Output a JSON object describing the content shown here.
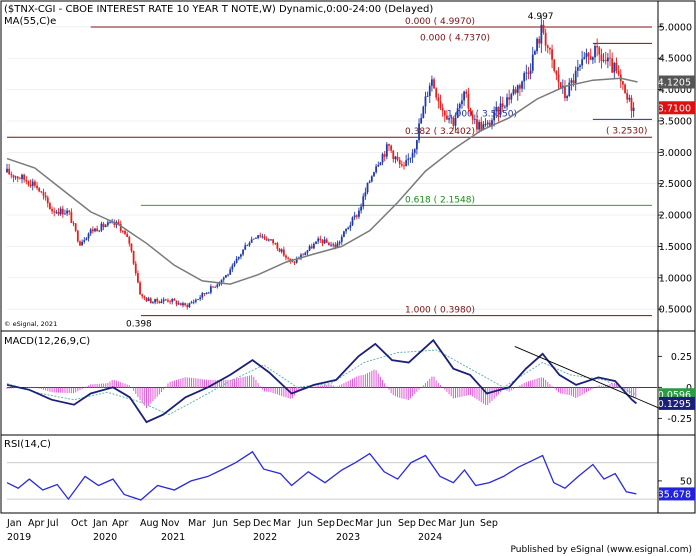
{
  "header": {
    "title": "($TNX-CGI - CBOE INTEREST RATE 10 YEAR T NOTE,W) Dynamic,0:00-24:00 (Delayed)",
    "ma_label": "MA(55,C)e",
    "copyright": "© eSignal, 2021",
    "footer": "Published by eSignal (www.esignal.com)"
  },
  "colors": {
    "up": "#1f3aa8",
    "down": "#e21f1f",
    "ma": "#7a7a7a",
    "macd": "#1a1f7a",
    "signal": "#6ab0b0",
    "hist": "#e05ad8",
    "rsi": "#2a2ad8",
    "fib_red": "#7a1010",
    "fib_green": "#1a8a1a",
    "fib_blue": "#2030a0"
  },
  "chart_data": [
    {
      "type": "candlestick",
      "panel": "price",
      "title": "($TNX-CGI - CBOE INTEREST RATE 10 YEAR T NOTE,W) Dynamic,0:00-24:00 (Delayed)",
      "ylim": [
        0.2,
        5.3
      ],
      "yticks": [
        "5.0000",
        "4.5000",
        "4.0000",
        "3.5000",
        "3.0000",
        "2.5000",
        "2.0000",
        "1.5000",
        "1.0000",
        "0.5000"
      ],
      "x_axis": {
        "months": [
          "Jan",
          "Apr",
          "Jul",
          "Oct",
          "Jan",
          "Apr",
          "Aug",
          "Nov",
          "Mar",
          "Jun",
          "Sep",
          "Dec",
          "Mar",
          "Jun",
          "Sep",
          "Dec",
          "Mar",
          "Jun",
          "Sep",
          "Dec",
          "Mar",
          "Jun",
          "Sep"
        ],
        "years": [
          "2019",
          "2020",
          "2021",
          "2022",
          "2023",
          "2024"
        ]
      },
      "series_points": [
        {
          "t": 2019.0,
          "v": 2.68
        },
        {
          "t": 2019.12,
          "v": 2.6
        },
        {
          "t": 2019.25,
          "v": 2.5
        },
        {
          "t": 2019.4,
          "v": 2.08
        },
        {
          "t": 2019.55,
          "v": 2.05
        },
        {
          "t": 2019.65,
          "v": 1.55
        },
        {
          "t": 2019.75,
          "v": 1.75
        },
        {
          "t": 2019.9,
          "v": 1.85
        },
        {
          "t": 2020.0,
          "v": 1.85
        },
        {
          "t": 2020.1,
          "v": 1.55
        },
        {
          "t": 2020.2,
          "v": 0.7
        },
        {
          "t": 2020.3,
          "v": 0.62
        },
        {
          "t": 2020.45,
          "v": 0.65
        },
        {
          "t": 2020.6,
          "v": 0.55
        },
        {
          "t": 2020.7,
          "v": 0.66
        },
        {
          "t": 2020.85,
          "v": 0.86
        },
        {
          "t": 2021.0,
          "v": 1.1
        },
        {
          "t": 2021.15,
          "v": 1.55
        },
        {
          "t": 2021.25,
          "v": 1.7
        },
        {
          "t": 2021.4,
          "v": 1.55
        },
        {
          "t": 2021.55,
          "v": 1.22
        },
        {
          "t": 2021.7,
          "v": 1.45
        },
        {
          "t": 2021.8,
          "v": 1.6
        },
        {
          "t": 2021.95,
          "v": 1.5
        },
        {
          "t": 2022.05,
          "v": 1.8
        },
        {
          "t": 2022.15,
          "v": 2.05
        },
        {
          "t": 2022.3,
          "v": 2.8
        },
        {
          "t": 2022.42,
          "v": 3.1
        },
        {
          "t": 2022.55,
          "v": 2.7
        },
        {
          "t": 2022.65,
          "v": 3.1
        },
        {
          "t": 2022.8,
          "v": 4.2
        },
        {
          "t": 2022.9,
          "v": 3.7
        },
        {
          "t": 2023.0,
          "v": 3.5
        },
        {
          "t": 2023.1,
          "v": 3.9
        },
        {
          "t": 2023.2,
          "v": 3.45
        },
        {
          "t": 2023.3,
          "v": 3.4
        },
        {
          "t": 2023.45,
          "v": 3.8
        },
        {
          "t": 2023.6,
          "v": 4.1
        },
        {
          "t": 2023.7,
          "v": 4.45
        },
        {
          "t": 2023.8,
          "v": 4.997
        },
        {
          "t": 2023.9,
          "v": 4.3
        },
        {
          "t": 2024.0,
          "v": 3.9
        },
        {
          "t": 2024.1,
          "v": 4.25
        },
        {
          "t": 2024.25,
          "v": 4.6
        },
        {
          "t": 2024.33,
          "v": 4.5
        },
        {
          "t": 2024.45,
          "v": 4.3
        },
        {
          "t": 2024.55,
          "v": 3.85
        },
        {
          "t": 2024.62,
          "v": 3.71
        }
      ],
      "ma_points": [
        {
          "t": 2019.0,
          "v": 2.9
        },
        {
          "t": 2019.25,
          "v": 2.75
        },
        {
          "t": 2019.5,
          "v": 2.4
        },
        {
          "t": 2019.75,
          "v": 2.05
        },
        {
          "t": 2020.0,
          "v": 1.85
        },
        {
          "t": 2020.25,
          "v": 1.55
        },
        {
          "t": 2020.5,
          "v": 1.2
        },
        {
          "t": 2020.75,
          "v": 0.95
        },
        {
          "t": 2021.0,
          "v": 0.9
        },
        {
          "t": 2021.25,
          "v": 1.05
        },
        {
          "t": 2021.5,
          "v": 1.25
        },
        {
          "t": 2021.75,
          "v": 1.38
        },
        {
          "t": 2022.0,
          "v": 1.5
        },
        {
          "t": 2022.25,
          "v": 1.75
        },
        {
          "t": 2022.5,
          "v": 2.2
        },
        {
          "t": 2022.75,
          "v": 2.7
        },
        {
          "t": 2023.0,
          "v": 3.05
        },
        {
          "t": 2023.25,
          "v": 3.35
        },
        {
          "t": 2023.5,
          "v": 3.55
        },
        {
          "t": 2023.75,
          "v": 3.85
        },
        {
          "t": 2024.0,
          "v": 4.05
        },
        {
          "t": 2024.25,
          "v": 4.15
        },
        {
          "t": 2024.5,
          "v": 4.18
        },
        {
          "t": 2024.65,
          "v": 4.12
        }
      ],
      "annotations": [
        {
          "text": "4.997",
          "t": 2023.8,
          "v": 4.997
        },
        {
          "text": "0.398",
          "t": 2020.2,
          "v": 0.398
        }
      ],
      "levels": [
        {
          "label": "0.000 ( 4.9970)",
          "value": 4.997,
          "color": "fib_red",
          "t0": 2019.75
        },
        {
          "label": "0.000 ( 4.7370)",
          "value": 4.737,
          "color": "fib_red",
          "t0": 2024.25
        },
        {
          "label": "1.000 ( 3.5250)",
          "value": 3.525,
          "color": "fib_blue",
          "t0": 2024.25
        },
        {
          "label": "0.382 ( 3.2402)",
          "value": 3.2402,
          "color": "fib_red",
          "t0": 2019.0
        },
        {
          "label": "( 3.2530)",
          "value": 3.253,
          "color": "fib_red",
          "t0": 2019.0
        },
        {
          "label": "0.618 ( 2.1548)",
          "value": 2.1548,
          "color": "fib_green",
          "t0": 2020.2
        },
        {
          "label": "1.000 ( 0.3980)",
          "value": 0.398,
          "color": "fib_red",
          "t0": 2020.2
        }
      ],
      "current_labels": [
        {
          "text": "4.1205",
          "value": 4.1205,
          "bg": "#555555"
        },
        {
          "text": "3.7100",
          "value": 3.71,
          "bg": "#dd1111"
        }
      ]
    },
    {
      "type": "line",
      "panel": "macd",
      "title": "MACD(12,26,9,C)",
      "ylim": [
        -0.36,
        0.43
      ],
      "yticks": [
        "0.25",
        "0",
        "-0.25"
      ],
      "macd_points": [
        {
          "t": 2019.0,
          "v": 0.02
        },
        {
          "t": 2019.2,
          "v": -0.02
        },
        {
          "t": 2019.4,
          "v": -0.1
        },
        {
          "t": 2019.6,
          "v": -0.14
        },
        {
          "t": 2019.75,
          "v": -0.05
        },
        {
          "t": 2019.95,
          "v": 0.0
        },
        {
          "t": 2020.1,
          "v": -0.08
        },
        {
          "t": 2020.25,
          "v": -0.28
        },
        {
          "t": 2020.4,
          "v": -0.22
        },
        {
          "t": 2020.6,
          "v": -0.08
        },
        {
          "t": 2020.8,
          "v": 0.0
        },
        {
          "t": 2021.0,
          "v": 0.1
        },
        {
          "t": 2021.2,
          "v": 0.22
        },
        {
          "t": 2021.35,
          "v": 0.12
        },
        {
          "t": 2021.55,
          "v": -0.05
        },
        {
          "t": 2021.75,
          "v": 0.02
        },
        {
          "t": 2021.95,
          "v": 0.06
        },
        {
          "t": 2022.15,
          "v": 0.25
        },
        {
          "t": 2022.3,
          "v": 0.35
        },
        {
          "t": 2022.45,
          "v": 0.22
        },
        {
          "t": 2022.6,
          "v": 0.2
        },
        {
          "t": 2022.82,
          "v": 0.38
        },
        {
          "t": 2023.0,
          "v": 0.15
        },
        {
          "t": 2023.15,
          "v": 0.1
        },
        {
          "t": 2023.3,
          "v": -0.05
        },
        {
          "t": 2023.5,
          "v": 0.0
        },
        {
          "t": 2023.65,
          "v": 0.15
        },
        {
          "t": 2023.8,
          "v": 0.27
        },
        {
          "t": 2023.95,
          "v": 0.1
        },
        {
          "t": 2024.1,
          "v": 0.02
        },
        {
          "t": 2024.3,
          "v": 0.08
        },
        {
          "t": 2024.45,
          "v": 0.05
        },
        {
          "t": 2024.6,
          "v": -0.1
        },
        {
          "t": 2024.64,
          "v": -0.1295
        }
      ],
      "signal_points": [
        {
          "t": 2019.0,
          "v": 0.03
        },
        {
          "t": 2019.3,
          "v": -0.05
        },
        {
          "t": 2019.6,
          "v": -0.1
        },
        {
          "t": 2019.9,
          "v": -0.04
        },
        {
          "t": 2020.2,
          "v": -0.12
        },
        {
          "t": 2020.45,
          "v": -0.22
        },
        {
          "t": 2020.7,
          "v": -0.1
        },
        {
          "t": 2021.0,
          "v": 0.05
        },
        {
          "t": 2021.3,
          "v": 0.18
        },
        {
          "t": 2021.6,
          "v": 0.0
        },
        {
          "t": 2021.9,
          "v": 0.03
        },
        {
          "t": 2022.2,
          "v": 0.2
        },
        {
          "t": 2022.5,
          "v": 0.28
        },
        {
          "t": 2022.85,
          "v": 0.3
        },
        {
          "t": 2023.15,
          "v": 0.15
        },
        {
          "t": 2023.45,
          "v": 0.0
        },
        {
          "t": 2023.8,
          "v": 0.2
        },
        {
          "t": 2024.05,
          "v": 0.1
        },
        {
          "t": 2024.35,
          "v": 0.06
        },
        {
          "t": 2024.64,
          "v": -0.0596
        }
      ],
      "trendline": [
        {
          "t": 2023.55,
          "v": 0.33
        },
        {
          "t": 2024.85,
          "v": -0.17
        }
      ],
      "current_labels": [
        {
          "text": "-0.0596",
          "value": -0.0596,
          "bg": "#2e9b44"
        },
        {
          "text": "-0.1295",
          "value": -0.1295,
          "bg": "#1a1f7a"
        }
      ]
    },
    {
      "type": "line",
      "panel": "rsi",
      "title": "RSI(14,C)",
      "ylim": [
        18,
        95
      ],
      "yticks": [
        "50"
      ],
      "rsi_points": [
        {
          "t": 2019.0,
          "v": 48
        },
        {
          "t": 2019.1,
          "v": 42
        },
        {
          "t": 2019.2,
          "v": 52
        },
        {
          "t": 2019.32,
          "v": 40
        },
        {
          "t": 2019.45,
          "v": 46
        },
        {
          "t": 2019.55,
          "v": 30
        },
        {
          "t": 2019.7,
          "v": 55
        },
        {
          "t": 2019.82,
          "v": 45
        },
        {
          "t": 2019.95,
          "v": 52
        },
        {
          "t": 2020.05,
          "v": 35
        },
        {
          "t": 2020.2,
          "v": 29
        },
        {
          "t": 2020.35,
          "v": 45
        },
        {
          "t": 2020.5,
          "v": 40
        },
        {
          "t": 2020.65,
          "v": 50
        },
        {
          "t": 2020.8,
          "v": 55
        },
        {
          "t": 2020.92,
          "v": 62
        },
        {
          "t": 2021.05,
          "v": 70
        },
        {
          "t": 2021.2,
          "v": 82
        },
        {
          "t": 2021.3,
          "v": 63
        },
        {
          "t": 2021.45,
          "v": 58
        },
        {
          "t": 2021.55,
          "v": 45
        },
        {
          "t": 2021.7,
          "v": 60
        },
        {
          "t": 2021.85,
          "v": 48
        },
        {
          "t": 2022.0,
          "v": 62
        },
        {
          "t": 2022.12,
          "v": 70
        },
        {
          "t": 2022.25,
          "v": 80
        },
        {
          "t": 2022.38,
          "v": 60
        },
        {
          "t": 2022.5,
          "v": 52
        },
        {
          "t": 2022.62,
          "v": 70
        },
        {
          "t": 2022.75,
          "v": 78
        },
        {
          "t": 2022.88,
          "v": 55
        },
        {
          "t": 2023.0,
          "v": 48
        },
        {
          "t": 2023.1,
          "v": 62
        },
        {
          "t": 2023.2,
          "v": 45
        },
        {
          "t": 2023.32,
          "v": 48
        },
        {
          "t": 2023.45,
          "v": 55
        },
        {
          "t": 2023.58,
          "v": 65
        },
        {
          "t": 2023.7,
          "v": 72
        },
        {
          "t": 2023.8,
          "v": 78
        },
        {
          "t": 2023.9,
          "v": 48
        },
        {
          "t": 2024.0,
          "v": 42
        },
        {
          "t": 2024.12,
          "v": 55
        },
        {
          "t": 2024.25,
          "v": 68
        },
        {
          "t": 2024.35,
          "v": 52
        },
        {
          "t": 2024.45,
          "v": 58
        },
        {
          "t": 2024.55,
          "v": 38
        },
        {
          "t": 2024.64,
          "v": 35.678
        }
      ],
      "current_labels": [
        {
          "text": "35.678",
          "value": 35.678,
          "bg": "#2222dd"
        }
      ]
    }
  ]
}
